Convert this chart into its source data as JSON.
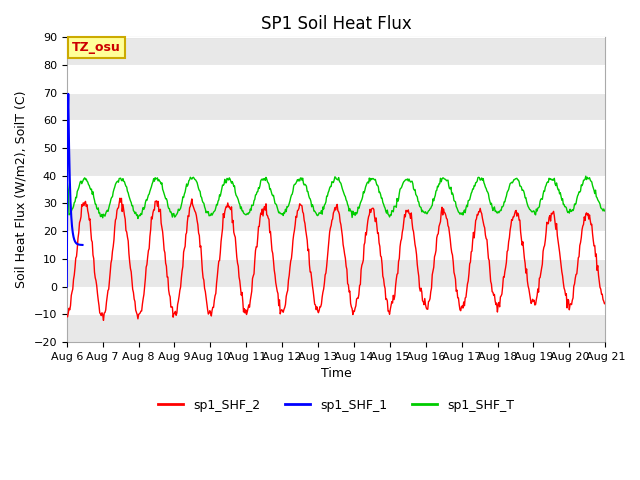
{
  "title": "SP1 Soil Heat Flux",
  "xlabel": "Time",
  "ylabel": "Soil Heat Flux (W/m2), SoilT (C)",
  "ylim": [
    -20,
    90
  ],
  "x_tick_labels": [
    "Aug 6",
    "Aug 7",
    "Aug 8",
    "Aug 9",
    "Aug 10",
    "Aug 11",
    "Aug 12",
    "Aug 13",
    "Aug 14",
    "Aug 15",
    "Aug 16",
    "Aug 17",
    "Aug 18",
    "Aug 19",
    "Aug 20",
    "Aug 21"
  ],
  "yticks": [
    -20,
    -10,
    0,
    10,
    20,
    30,
    40,
    50,
    60,
    70,
    80,
    90
  ],
  "bg_color": "#ffffff",
  "fig_bg_color": "#ffffff",
  "band_color": "#e8e8e8",
  "line_colors": {
    "shf2": "#ff0000",
    "shf1": "#0000ff",
    "shft": "#00cc00"
  },
  "legend_labels": [
    "sp1_SHF_2",
    "sp1_SHF_1",
    "sp1_SHF_T"
  ],
  "tz_label": "TZ_osu",
  "tz_bg": "#ffff99",
  "tz_border": "#ccaa00",
  "tz_text_color": "#cc0000",
  "title_fontsize": 12,
  "axis_fontsize": 9,
  "tick_fontsize": 8
}
